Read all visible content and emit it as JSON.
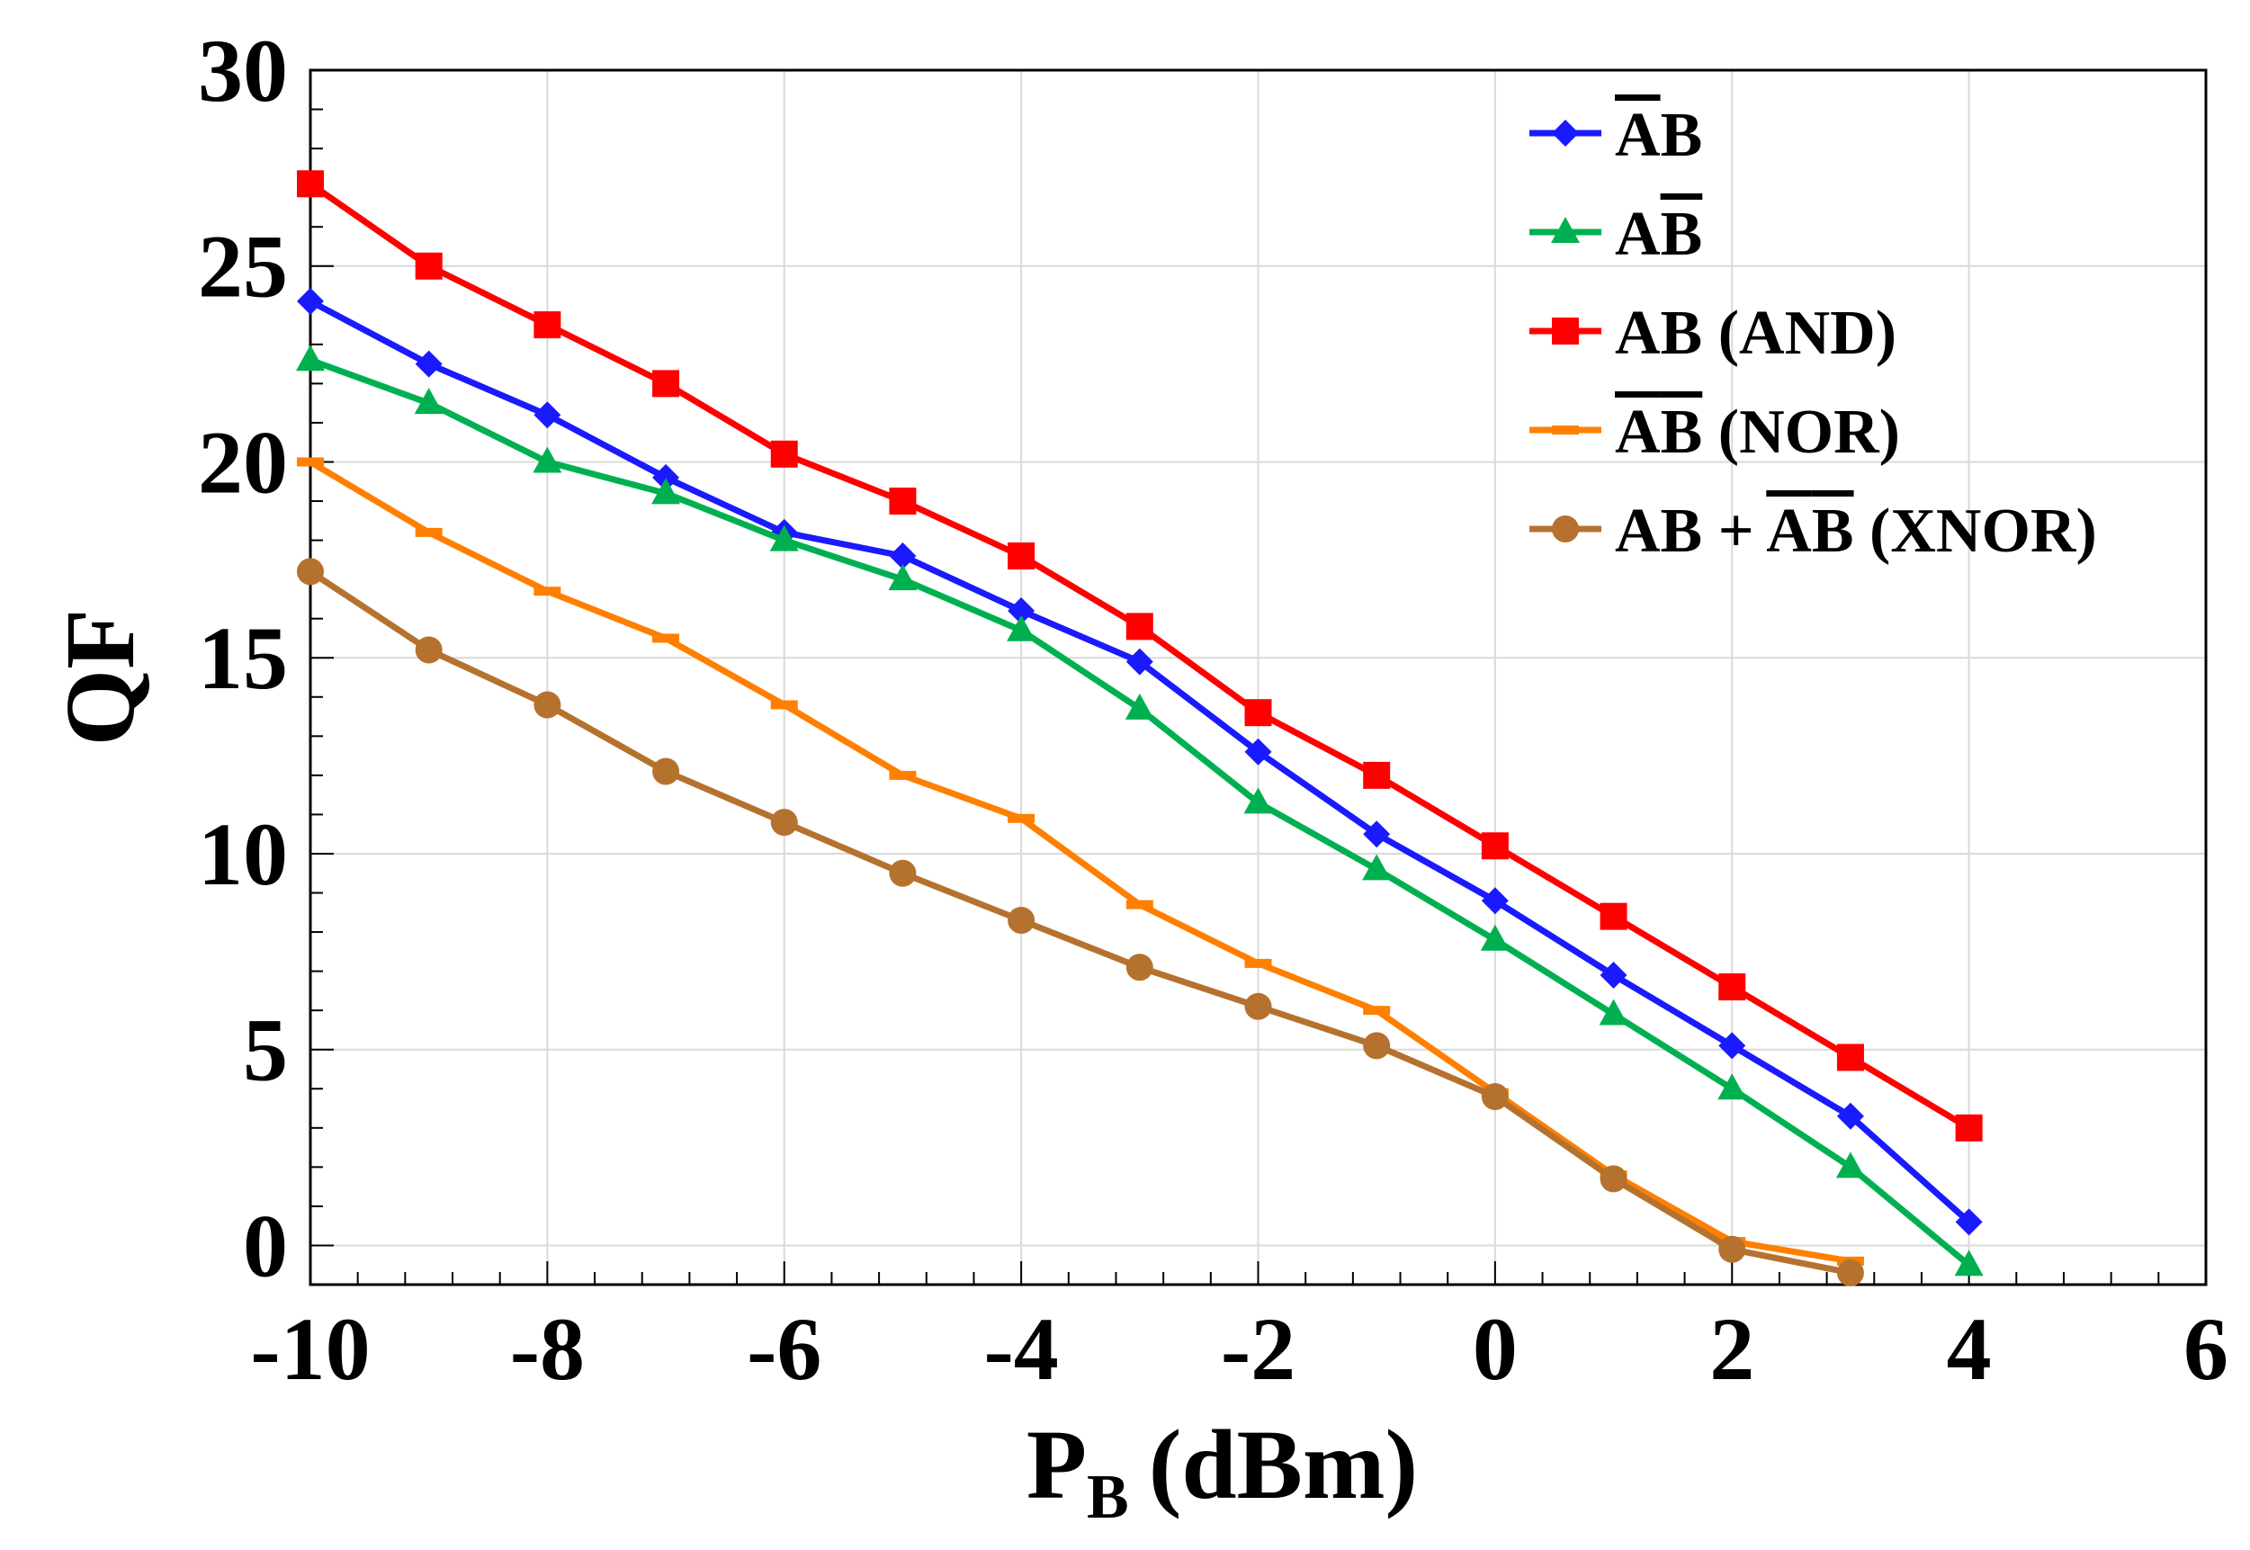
{
  "chart_data": {
    "type": "line",
    "title": "",
    "xlabel": "P",
    "xlabel_sub": "B",
    "xlabel_unit": "(dBm)",
    "ylabel": "QF",
    "xlim": [
      -10,
      6
    ],
    "ylim": [
      -1,
      30
    ],
    "x_ticks": [
      -10,
      -8,
      -6,
      -4,
      -2,
      0,
      2,
      4,
      6
    ],
    "x_tick_labels": [
      "-10",
      "-8",
      "-6",
      "-4",
      "-2",
      "0",
      "2",
      "4",
      "6"
    ],
    "y_ticks": [
      0,
      5,
      10,
      15,
      20,
      25,
      30
    ],
    "y_tick_labels": [
      "0",
      "5",
      "10",
      "15",
      "20",
      "25",
      "30"
    ],
    "grid": true,
    "legend_position": "top-right",
    "series": [
      {
        "name": "ĀB",
        "legend_parts": [
          {
            "t": "A",
            "bar": true
          },
          {
            "t": "B",
            "bar": false
          }
        ],
        "color": "#1a1aff",
        "marker": "diamond",
        "x": [
          -10,
          -9,
          -8,
          -7,
          -6,
          -5,
          -4,
          -3,
          -2,
          -1,
          0,
          1,
          2,
          3,
          4
        ],
        "values": [
          24.1,
          22.5,
          21.2,
          19.6,
          18.2,
          17.6,
          16.2,
          14.9,
          12.6,
          10.5,
          8.8,
          6.9,
          5.1,
          3.3,
          0.6
        ]
      },
      {
        "name": "AB̄",
        "legend_parts": [
          {
            "t": "A",
            "bar": false
          },
          {
            "t": "B",
            "bar": true
          }
        ],
        "color": "#00b050",
        "marker": "triangle",
        "x": [
          -10,
          -9,
          -8,
          -7,
          -6,
          -5,
          -4,
          -3,
          -2,
          -1,
          0,
          1,
          2,
          3,
          4
        ],
        "values": [
          22.6,
          21.5,
          20.0,
          19.2,
          18.0,
          17.0,
          15.7,
          13.7,
          11.3,
          9.6,
          7.8,
          5.9,
          4.0,
          2.0,
          -0.5
        ]
      },
      {
        "name": "AB (AND)",
        "legend_parts": [
          {
            "t": "AB (AND)",
            "bar": false
          }
        ],
        "color": "#ff0000",
        "marker": "square",
        "x": [
          -10,
          -9,
          -8,
          -7,
          -6,
          -5,
          -4,
          -3,
          -2,
          -1,
          0,
          1,
          2,
          3,
          4
        ],
        "values": [
          27.1,
          25.0,
          23.5,
          22.0,
          20.2,
          19.0,
          17.6,
          15.8,
          13.6,
          12.0,
          10.2,
          8.4,
          6.6,
          4.8,
          3.0
        ]
      },
      {
        "name": "ĀB̄ (NOR)",
        "legend_parts": [
          {
            "t": "A",
            "bar": true
          },
          {
            "t": "B",
            "bar": true
          },
          {
            "t": " (NOR)",
            "bar": false
          }
        ],
        "color": "#ff7f00",
        "marker": "dash",
        "x": [
          -10,
          -9,
          -8,
          -7,
          -6,
          -5,
          -4,
          -3,
          -2,
          -1,
          0,
          1,
          2,
          3
        ],
        "values": [
          20.0,
          18.2,
          16.7,
          15.5,
          13.8,
          12.0,
          10.9,
          8.7,
          7.2,
          6.0,
          3.9,
          1.8,
          0.1,
          -0.4
        ]
      },
      {
        "name": "AB + ĀB̄ (XNOR)",
        "legend_parts": [
          {
            "t": "AB + ",
            "bar": false
          },
          {
            "t": "A",
            "bar": true
          },
          {
            "t": "B",
            "bar": true
          },
          {
            "t": " (XNOR)",
            "bar": false
          }
        ],
        "color": "#b5722e",
        "marker": "circle",
        "x": [
          -10,
          -9,
          -8,
          -7,
          -6,
          -5,
          -4,
          -3,
          -2,
          -1,
          0,
          1,
          2,
          3
        ],
        "values": [
          17.2,
          15.2,
          13.8,
          12.1,
          10.8,
          9.5,
          8.3,
          7.1,
          6.1,
          5.1,
          3.8,
          1.7,
          -0.1,
          -0.7
        ]
      }
    ]
  }
}
